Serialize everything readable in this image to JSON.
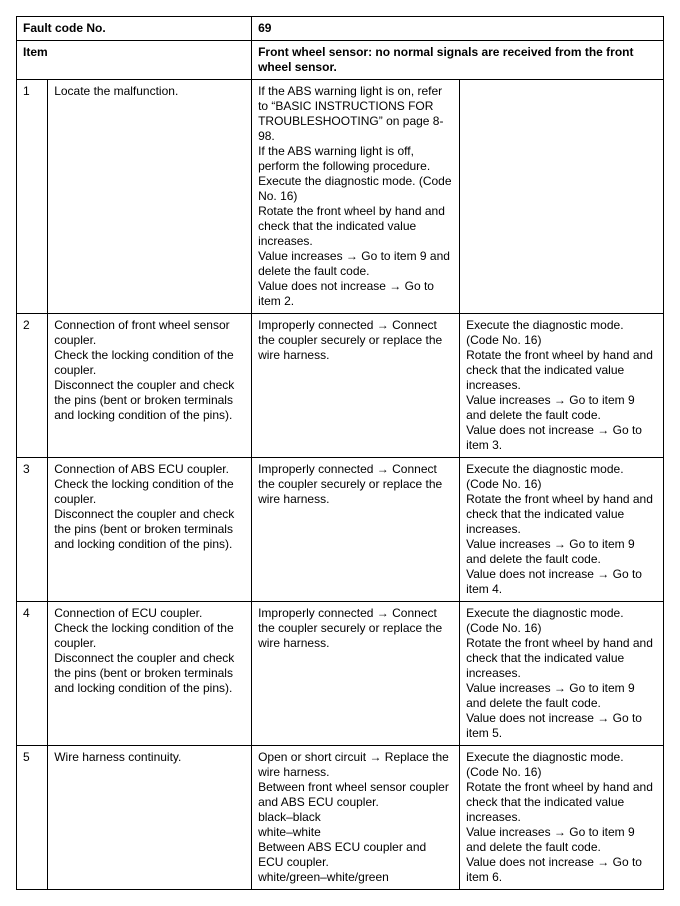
{
  "header": {
    "fault_label": "Fault code No.",
    "fault_value": "69",
    "item_label": "Item",
    "item_value": "Front wheel sensor: no normal signals are received from the front wheel sensor."
  },
  "rows": [
    {
      "num": "1",
      "step": "Locate the malfunction.",
      "detail": "If the ABS warning light is on, refer to “BASIC INSTRUCTIONS FOR TROUBLESHOOTING” on page 8-98.\nIf the ABS warning light is off, perform the following procedure.\nExecute the diagnostic mode. (Code No. 16)\nRotate the front wheel by hand and check that the indicated value increases.\nValue increases → Go to item 9 and delete the fault code.\nValue does not increase → Go to item 2.",
      "result": ""
    },
    {
      "num": "2",
      "step": "Connection of front wheel sensor coupler.\nCheck the locking condition of the coupler.\nDisconnect the coupler and check the pins (bent or broken terminals and locking condition of the pins).",
      "detail": "Improperly connected → Connect the coupler securely or replace the wire harness.",
      "result": "Execute the diagnostic mode. (Code No. 16)\nRotate the front wheel by hand and check that the indicated value increases.\nValue increases → Go to item 9 and delete the fault code.\nValue does not increase → Go to item 3."
    },
    {
      "num": "3",
      "step": "Connection of ABS ECU coupler.\nCheck the locking condition of the coupler.\nDisconnect the coupler and check the pins (bent or broken terminals and locking condition of the pins).",
      "detail": "Improperly connected → Connect the coupler securely or replace the wire harness.",
      "result": "Execute the diagnostic mode. (Code No. 16)\nRotate the front wheel by hand and check that the indicated value increases.\nValue increases → Go to item 9 and delete the fault code.\nValue does not increase → Go to item 4."
    },
    {
      "num": "4",
      "step": "Connection of ECU coupler.\nCheck the locking condition of the coupler.\nDisconnect the coupler and check the pins (bent or broken terminals and locking condition of the pins).",
      "detail": "Improperly connected → Connect the coupler securely or replace the wire harness.",
      "result": "Execute the diagnostic mode. (Code No. 16)\nRotate the front wheel by hand and check that the indicated value increases.\nValue increases → Go to item 9 and delete the fault code.\nValue does not increase → Go to item 5."
    },
    {
      "num": "5",
      "step": "Wire harness continuity.",
      "detail": "Open or short circuit → Replace the wire harness.\nBetween front wheel sensor coupler and ABS ECU coupler.\nblack–black\nwhite–white\nBetween ABS ECU coupler and ECU coupler.\nwhite/green–white/green",
      "result": "Execute the diagnostic mode. (Code No. 16)\nRotate the front wheel by hand and check that the indicated value increases.\nValue increases → Go to item 9 and delete the fault code.\nValue does not increase → Go to item 6."
    }
  ]
}
